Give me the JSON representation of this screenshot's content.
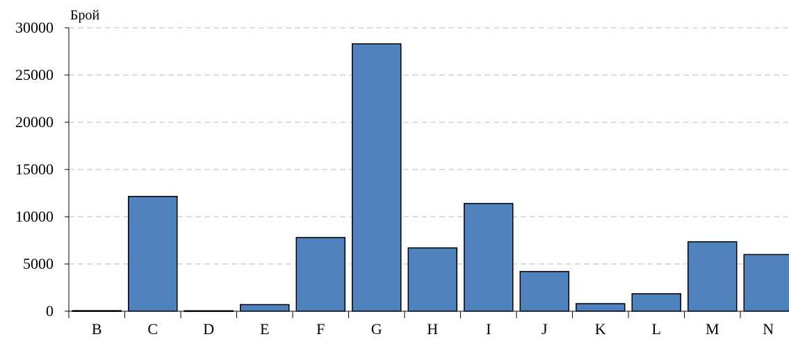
{
  "chart_data": {
    "type": "bar",
    "ylabel": "Брой",
    "xlabel": "",
    "categories": [
      "B",
      "C",
      "D",
      "E",
      "F",
      "G",
      "H",
      "I",
      "J",
      "K",
      "L",
      "M",
      "N"
    ],
    "values": [
      60,
      12150,
      50,
      700,
      7800,
      28300,
      6700,
      11400,
      4200,
      800,
      1850,
      7350,
      6000
    ],
    "ylim": [
      0,
      30000
    ],
    "yticks": [
      0,
      5000,
      10000,
      15000,
      20000,
      25000,
      30000
    ],
    "ytick_labels": [
      "0",
      "5000",
      "10000",
      "15000",
      "20000",
      "25000",
      "30000"
    ],
    "grid": "horizontal dashed",
    "legend": "none",
    "bar_color": "#4f81bd",
    "bar_edge_color": "#000000",
    "grid_color": "#c6d3e6"
  }
}
